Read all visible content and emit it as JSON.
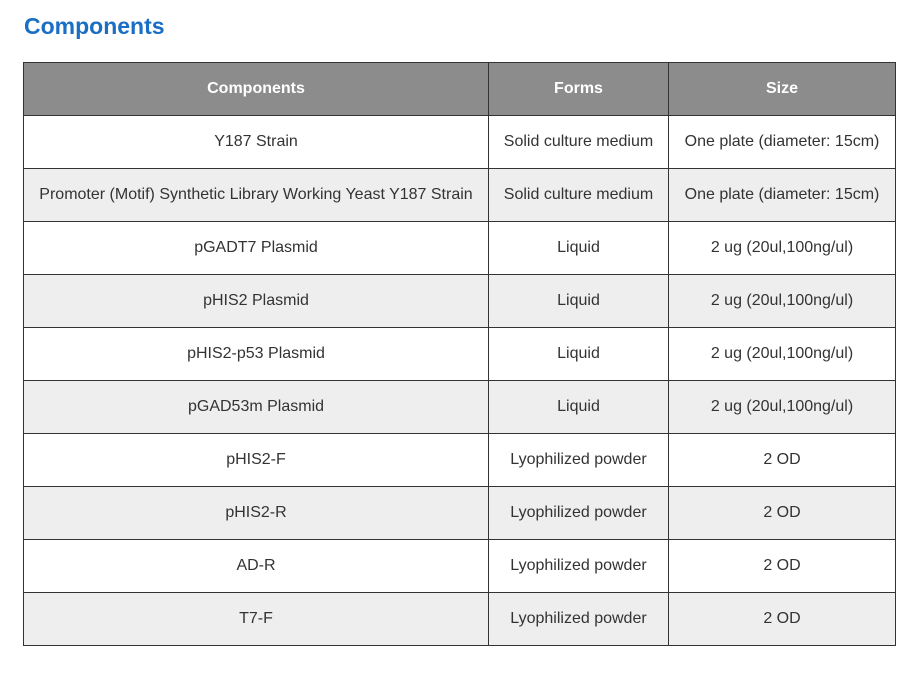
{
  "page": {
    "title": "Components"
  },
  "table": {
    "headers": [
      "Components",
      "Forms",
      "Size"
    ],
    "rows": [
      [
        "Y187 Strain",
        "Solid culture medium",
        "One plate (diameter: 15cm)"
      ],
      [
        "Promoter (Motif) Synthetic Library Working Yeast Y187 Strain",
        "Solid culture medium",
        "One plate (diameter: 15cm)"
      ],
      [
        "pGADT7 Plasmid",
        "Liquid",
        "2 ug  (20ul,100ng/ul)"
      ],
      [
        "pHIS2 Plasmid",
        "Liquid",
        "2 ug  (20ul,100ng/ul)"
      ],
      [
        "pHIS2-p53 Plasmid",
        "Liquid",
        "2 ug  (20ul,100ng/ul)"
      ],
      [
        "pGAD53m Plasmid",
        "Liquid",
        "2 ug  (20ul,100ng/ul)"
      ],
      [
        "pHIS2-F",
        "Lyophilized powder",
        "2 OD"
      ],
      [
        "pHIS2-R",
        "Lyophilized powder",
        "2 OD"
      ],
      [
        "AD-R",
        "Lyophilized powder",
        "2 OD"
      ],
      [
        "T7-F",
        "Lyophilized powder",
        "2 OD"
      ]
    ]
  },
  "colors": {
    "title": "#1a6fc4",
    "header_bg": "#8c8c8c",
    "header_text": "#ffffff",
    "row_alt_bg": "#eeeeee",
    "border": "#333333"
  }
}
